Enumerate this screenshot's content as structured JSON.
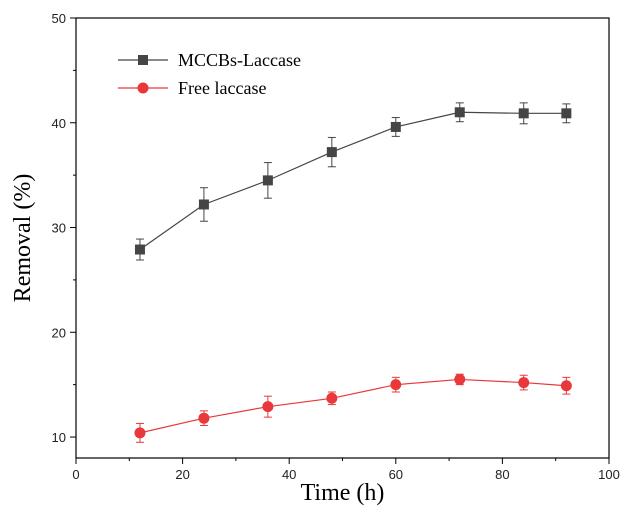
{
  "chart_data": {
    "type": "line",
    "title": "",
    "xlabel": "Time (h)",
    "ylabel": "Removal (%)",
    "xlim": [
      0,
      100
    ],
    "ylim": [
      8,
      50
    ],
    "xticks": [
      0,
      20,
      40,
      60,
      80,
      100
    ],
    "yticks": [
      10,
      20,
      30,
      40,
      50
    ],
    "grid": false,
    "legend_position": "top-left",
    "x": [
      12,
      24,
      36,
      48,
      60,
      72,
      84,
      92
    ],
    "series": [
      {
        "name": "MCCBs-Laccase",
        "values": [
          27.9,
          32.2,
          34.5,
          37.2,
          39.6,
          41.0,
          40.9,
          40.9
        ],
        "errors": [
          1.0,
          1.6,
          1.7,
          1.4,
          0.9,
          0.9,
          1.0,
          0.9
        ],
        "color": "#454545",
        "marker": "square"
      },
      {
        "name": "Free laccase",
        "values": [
          10.4,
          11.8,
          12.9,
          13.7,
          15.0,
          15.5,
          15.2,
          14.9
        ],
        "errors": [
          0.9,
          0.7,
          1.0,
          0.6,
          0.7,
          0.5,
          0.7,
          0.8
        ],
        "color": "#e8383b",
        "marker": "circle"
      }
    ]
  }
}
